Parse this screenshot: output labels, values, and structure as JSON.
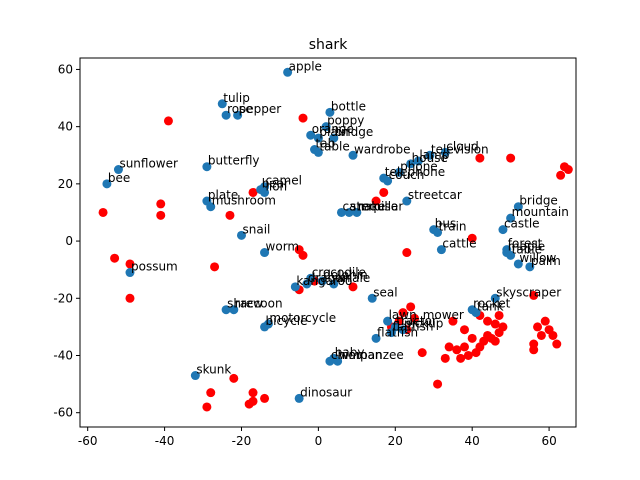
{
  "chart_data": {
    "type": "scatter",
    "title": "shark",
    "xlabel": "",
    "ylabel": "",
    "xlim": [
      -62,
      67
    ],
    "ylim": [
      -65,
      64
    ],
    "xticks": [
      -60,
      -40,
      -20,
      0,
      20,
      40,
      60
    ],
    "yticks": [
      -60,
      -40,
      -20,
      0,
      20,
      40,
      60
    ],
    "grid": false,
    "series": [
      {
        "color": "#1f77b4",
        "points": [
          {
            "x": -8,
            "y": 59,
            "label": "apple"
          },
          {
            "x": 3,
            "y": 45,
            "label": "bottle"
          },
          {
            "x": 2,
            "y": 40,
            "label": "poppy"
          },
          {
            "x": -2,
            "y": 37,
            "label": "orange"
          },
          {
            "x": 4,
            "y": 36,
            "label": "bridge"
          },
          {
            "x": 0,
            "y": 36,
            "label": "plain"
          },
          {
            "x": -25,
            "y": 48,
            "label": "tulip"
          },
          {
            "x": -24,
            "y": 44,
            "label": "rose"
          },
          {
            "x": -21,
            "y": 44,
            "label": "pepper"
          },
          {
            "x": -1,
            "y": 32,
            "label": "tab"
          },
          {
            "x": 0,
            "y": 31,
            "label": "table"
          },
          {
            "x": 9,
            "y": 30,
            "label": "wardrobe"
          },
          {
            "x": 33,
            "y": 31,
            "label": "cloud"
          },
          {
            "x": 29,
            "y": 30,
            "label": "television"
          },
          {
            "x": 26,
            "y": 28,
            "label": "lamp"
          },
          {
            "x": 24,
            "y": 27,
            "label": "house"
          },
          {
            "x": 21,
            "y": 24,
            "label": "phone"
          },
          {
            "x": 17,
            "y": 22,
            "label": "telephone"
          },
          {
            "x": 18,
            "y": 21,
            "label": "couch"
          },
          {
            "x": -52,
            "y": 25,
            "label": "sunflower"
          },
          {
            "x": -55,
            "y": 20,
            "label": "bee"
          },
          {
            "x": -29,
            "y": 26,
            "label": "butterfly"
          },
          {
            "x": -14,
            "y": 19,
            "label": "camel"
          },
          {
            "x": -15,
            "y": 18,
            "label": "bear"
          },
          {
            "x": -14,
            "y": 17,
            "label": "lion"
          },
          {
            "x": -29,
            "y": 14,
            "label": "plate"
          },
          {
            "x": -28,
            "y": 12,
            "label": "mushroom"
          },
          {
            "x": 6,
            "y": 10,
            "label": "caterpillar"
          },
          {
            "x": 8,
            "y": 10,
            "label": "snake"
          },
          {
            "x": 10,
            "y": 10,
            "label": "mouse"
          },
          {
            "x": 23,
            "y": 14,
            "label": "streetcar"
          },
          {
            "x": 52,
            "y": 12,
            "label": "bridge"
          },
          {
            "x": 50,
            "y": 8,
            "label": "mountain"
          },
          {
            "x": 48,
            "y": 4,
            "label": "castle"
          },
          {
            "x": 30,
            "y": 4,
            "label": "bus"
          },
          {
            "x": 31,
            "y": 3,
            "label": "train"
          },
          {
            "x": -20,
            "y": 2,
            "label": "snail"
          },
          {
            "x": 32,
            "y": -3,
            "label": "cattle"
          },
          {
            "x": 49,
            "y": -3,
            "label": "forest"
          },
          {
            "x": 49,
            "y": -4,
            "label": "maple"
          },
          {
            "x": 50,
            "y": -5,
            "label": "table"
          },
          {
            "x": 52,
            "y": -8,
            "label": "willow"
          },
          {
            "x": 55,
            "y": -9,
            "label": "palm"
          },
          {
            "x": -14,
            "y": -4,
            "label": "worm"
          },
          {
            "x": -49,
            "y": -11,
            "label": "possum"
          },
          {
            "x": -2,
            "y": -13,
            "label": "crocodile"
          },
          {
            "x": -3,
            "y": -15,
            "label": "dragon"
          },
          {
            "x": 1,
            "y": -14,
            "label": "dolphin"
          },
          {
            "x": 4,
            "y": -15,
            "label": "whale"
          },
          {
            "x": -6,
            "y": -16,
            "label": "kangaroo"
          },
          {
            "x": 14,
            "y": -20,
            "label": "seal"
          },
          {
            "x": 46,
            "y": -20,
            "label": "skyscraper"
          },
          {
            "x": 40,
            "y": -24,
            "label": "rocket"
          },
          {
            "x": 41,
            "y": -25,
            "label": "tank"
          },
          {
            "x": -24,
            "y": -24,
            "label": "shrew"
          },
          {
            "x": -22,
            "y": -24,
            "label": "raccoon"
          },
          {
            "x": -14,
            "y": -30,
            "label": "bicycle"
          },
          {
            "x": -13,
            "y": -29,
            "label": "motorcycle"
          },
          {
            "x": 18,
            "y": -28,
            "label": "lawn_mower"
          },
          {
            "x": 20,
            "y": -30,
            "label": "tractor"
          },
          {
            "x": 22,
            "y": -31,
            "label": "pickup"
          },
          {
            "x": 19,
            "y": -32,
            "label": "flatfish"
          },
          {
            "x": 15,
            "y": -34,
            "label": "flatfish"
          },
          {
            "x": 3,
            "y": -42,
            "label": "chimpanzee"
          },
          {
            "x": 4,
            "y": -41,
            "label": "baby"
          },
          {
            "x": 5,
            "y": -42,
            "label": "woman"
          },
          {
            "x": -32,
            "y": -47,
            "label": "skunk"
          },
          {
            "x": -5,
            "y": -55,
            "label": "dinosaur"
          }
        ]
      },
      {
        "color": "#ff0000",
        "points": [
          {
            "x": -39,
            "y": 42
          },
          {
            "x": -4,
            "y": 43
          },
          {
            "x": 42,
            "y": 29
          },
          {
            "x": 50,
            "y": 29
          },
          {
            "x": 63,
            "y": 23
          },
          {
            "x": 64,
            "y": 26
          },
          {
            "x": 65,
            "y": 25
          },
          {
            "x": 17,
            "y": 17
          },
          {
            "x": -17,
            "y": 17
          },
          {
            "x": 15,
            "y": 14
          },
          {
            "x": -41,
            "y": 13
          },
          {
            "x": -41,
            "y": 9
          },
          {
            "x": -56,
            "y": 10
          },
          {
            "x": -23,
            "y": 9
          },
          {
            "x": 40,
            "y": 1
          },
          {
            "x": -5,
            "y": -3
          },
          {
            "x": -4,
            "y": -5
          },
          {
            "x": 23,
            "y": -4
          },
          {
            "x": -53,
            "y": -6
          },
          {
            "x": -49,
            "y": -8
          },
          {
            "x": -27,
            "y": -9
          },
          {
            "x": -1,
            "y": -14
          },
          {
            "x": -5,
            "y": -17
          },
          {
            "x": 9,
            "y": -16
          },
          {
            "x": -49,
            "y": -20
          },
          {
            "x": 56,
            "y": -19
          },
          {
            "x": 24,
            "y": -23
          },
          {
            "x": 22,
            "y": -25
          },
          {
            "x": 25,
            "y": -27
          },
          {
            "x": 21,
            "y": -28
          },
          {
            "x": 19,
            "y": -30
          },
          {
            "x": 23,
            "y": -31
          },
          {
            "x": 35,
            "y": -28
          },
          {
            "x": 38,
            "y": -31
          },
          {
            "x": 42,
            "y": -26
          },
          {
            "x": 44,
            "y": -28
          },
          {
            "x": 46,
            "y": -29
          },
          {
            "x": 47,
            "y": -32
          },
          {
            "x": 45,
            "y": -34
          },
          {
            "x": 43,
            "y": -35
          },
          {
            "x": 40,
            "y": -34
          },
          {
            "x": 38,
            "y": -37
          },
          {
            "x": 39,
            "y": -40
          },
          {
            "x": 37,
            "y": -41
          },
          {
            "x": 36,
            "y": -38
          },
          {
            "x": 34,
            "y": -37
          },
          {
            "x": 33,
            "y": -41
          },
          {
            "x": 41,
            "y": -39
          },
          {
            "x": 42,
            "y": -37
          },
          {
            "x": 44,
            "y": -33
          },
          {
            "x": 46,
            "y": -35
          },
          {
            "x": 47,
            "y": -26
          },
          {
            "x": 48,
            "y": -30
          },
          {
            "x": 57,
            "y": -30
          },
          {
            "x": 59,
            "y": -28
          },
          {
            "x": 60,
            "y": -31
          },
          {
            "x": 61,
            "y": -33
          },
          {
            "x": 58,
            "y": -33
          },
          {
            "x": 56,
            "y": -36
          },
          {
            "x": 56,
            "y": -38
          },
          {
            "x": 62,
            "y": -36
          },
          {
            "x": 27,
            "y": -39
          },
          {
            "x": 31,
            "y": -50
          },
          {
            "x": -22,
            "y": -48
          },
          {
            "x": -28,
            "y": -53
          },
          {
            "x": -17,
            "y": -53
          },
          {
            "x": -17,
            "y": -56
          },
          {
            "x": -18,
            "y": -57
          },
          {
            "x": -14,
            "y": -55
          },
          {
            "x": -29,
            "y": -58
          }
        ]
      }
    ]
  }
}
